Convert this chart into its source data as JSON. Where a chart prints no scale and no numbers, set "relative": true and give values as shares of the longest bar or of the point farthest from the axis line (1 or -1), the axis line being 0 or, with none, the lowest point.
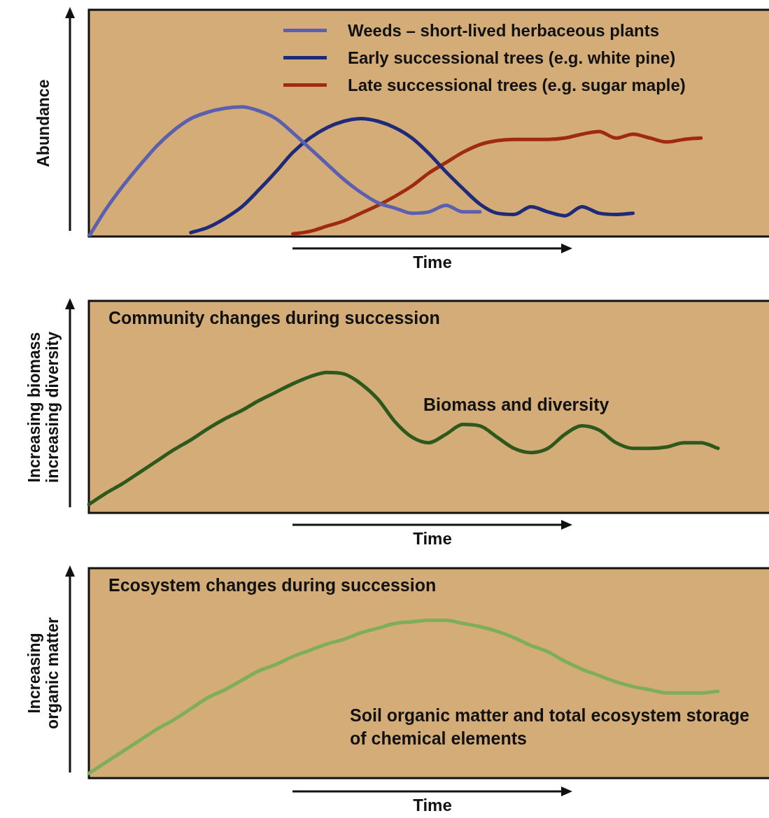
{
  "chart_data": [
    {
      "type": "line",
      "xlabel": "Time",
      "ylabel": "Abundance",
      "relative": true,
      "legend": "top right",
      "categories": [
        null,
        null,
        null,
        null,
        null,
        null,
        null,
        null,
        null,
        null,
        null,
        null,
        null,
        null,
        null,
        null,
        null,
        null,
        null,
        null,
        null,
        null,
        null,
        null,
        null,
        null,
        null,
        null,
        null,
        null,
        null,
        null,
        null,
        null,
        null,
        null,
        null,
        null,
        null,
        null,
        null
      ],
      "series": [
        {
          "name": "Weeds – short-lived herbaceous plants",
          "color": "#5b5fb0",
          "values": [
            0,
            0.21,
            0.39,
            0.55,
            0.7,
            0.82,
            0.91,
            0.96,
            0.99,
            1,
            0.97,
            0.91,
            0.8,
            0.68,
            0.56,
            0.44,
            0.34,
            0.26,
            0.22,
            0.18,
            0.19,
            0.24,
            0.19,
            0.19,
            null,
            null,
            null,
            null,
            null,
            null,
            null,
            null,
            null,
            null,
            null,
            null,
            null,
            null,
            null,
            null,
            null
          ]
        },
        {
          "name": "Early successional trees (e.g. white pine)",
          "color": "#1f2a78",
          "values": [
            null,
            null,
            null,
            null,
            null,
            null,
            0.03,
            0.07,
            0.14,
            0.23,
            0.36,
            0.5,
            0.65,
            0.76,
            0.84,
            0.89,
            0.91,
            0.89,
            0.84,
            0.76,
            0.64,
            0.5,
            0.37,
            0.25,
            0.18,
            0.17,
            0.23,
            0.19,
            0.16,
            0.23,
            0.18,
            0.17,
            0.18,
            null,
            null,
            null,
            null,
            null,
            null,
            null,
            null
          ]
        },
        {
          "name": "Late successional trees (e.g. sugar maple)",
          "color": "#a02a10",
          "values": [
            null,
            null,
            null,
            null,
            null,
            null,
            null,
            null,
            null,
            null,
            null,
            null,
            0.02,
            0.04,
            0.08,
            0.12,
            0.18,
            0.24,
            0.31,
            0.39,
            0.49,
            0.57,
            0.65,
            0.71,
            0.74,
            0.75,
            0.75,
            0.75,
            0.76,
            0.79,
            0.81,
            0.76,
            0.79,
            0.76,
            0.73,
            0.75,
            0.76,
            null,
            null,
            null,
            null
          ]
        }
      ]
    },
    {
      "type": "line",
      "title": "Community changes during succession",
      "xlabel": "Time",
      "ylabel": "Increasing biomass increasing diversity",
      "relative": true,
      "annotations": [
        "Biomass and diversity"
      ],
      "categories": [
        null,
        null,
        null,
        null,
        null,
        null,
        null,
        null,
        null,
        null,
        null,
        null,
        null,
        null,
        null,
        null,
        null,
        null,
        null,
        null,
        null,
        null,
        null,
        null,
        null,
        null,
        null,
        null,
        null,
        null,
        null,
        null,
        null,
        null,
        null,
        null,
        null,
        null,
        null,
        null,
        null
      ],
      "series": [
        {
          "color": "#2d5a1c",
          "values": [
            0.06,
            0.14,
            0.21,
            0.29,
            0.37,
            0.45,
            0.52,
            0.6,
            0.67,
            0.73,
            0.8,
            0.86,
            0.92,
            0.97,
            1,
            0.99,
            0.92,
            0.81,
            0.65,
            0.54,
            0.5,
            0.56,
            0.63,
            0.62,
            0.54,
            0.46,
            0.43,
            0.46,
            0.56,
            0.62,
            0.59,
            0.5,
            0.46,
            0.46,
            0.47,
            0.5,
            0.5,
            0.46,
            null,
            null,
            null
          ]
        }
      ]
    },
    {
      "type": "line",
      "title": "Ecosystem changes during succession",
      "xlabel": "Time",
      "ylabel": "Increasing organic matter",
      "relative": true,
      "annotations": [
        "Soil organic matter and total ecosystem storage of chemical elements"
      ],
      "categories": [
        null,
        null,
        null,
        null,
        null,
        null,
        null,
        null,
        null,
        null,
        null,
        null,
        null,
        null,
        null,
        null,
        null,
        null,
        null,
        null,
        null,
        null,
        null,
        null,
        null,
        null,
        null,
        null,
        null,
        null,
        null,
        null,
        null,
        null,
        null,
        null,
        null,
        null,
        null,
        null,
        null
      ],
      "series": [
        {
          "color": "#7fae5a",
          "values": [
            0.03,
            0.1,
            0.17,
            0.24,
            0.31,
            0.37,
            0.44,
            0.51,
            0.56,
            0.62,
            0.68,
            0.72,
            0.77,
            0.81,
            0.85,
            0.88,
            0.92,
            0.95,
            0.98,
            0.99,
            1,
            1,
            0.98,
            0.96,
            0.93,
            0.89,
            0.84,
            0.8,
            0.74,
            0.69,
            0.65,
            0.61,
            0.58,
            0.56,
            0.54,
            0.54,
            0.54,
            0.55,
            null,
            null,
            null
          ]
        }
      ]
    }
  ]
}
